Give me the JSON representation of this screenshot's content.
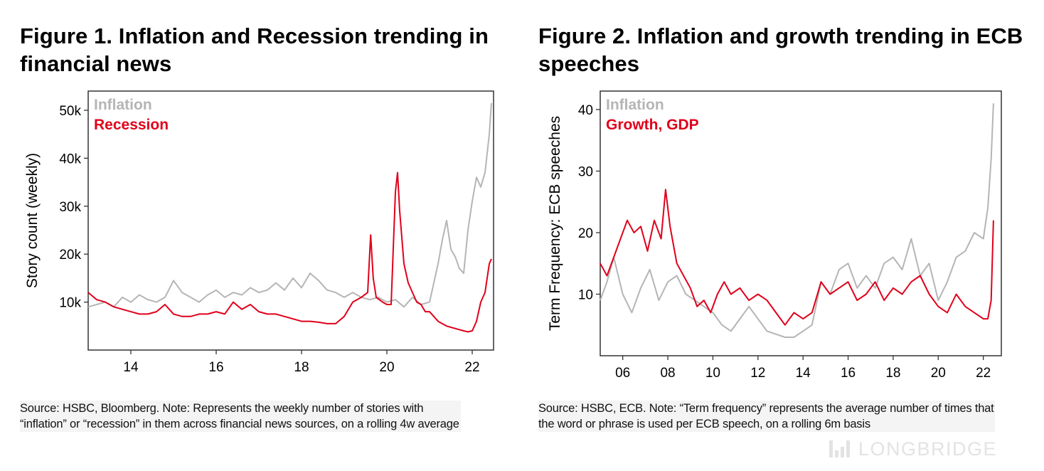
{
  "figure1": {
    "title": "Figure 1. Inflation and Recession trending in financial news",
    "source": "Source: HSBC, Bloomberg. Note: Represents the weekly number of stories with “inflation” or “recession” in them across financial news sources, on a rolling 4w average"
  },
  "figure2": {
    "title": "Figure 2. Inflation and growth trending in ECB speeches",
    "source": "Source: HSBC, ECB. Note: “Term frequency” represents the average number of times that the word or phrase is used per ECB speech, on a rolling 6m basis"
  },
  "watermark": {
    "text": "LONGBRIDGE",
    "icon": "longbridge-bars-icon"
  },
  "colors": {
    "inflation": "#b5b5b5",
    "recession": "#e0001b",
    "axis": "#333333"
  },
  "chart_data": [
    {
      "type": "line",
      "title": "Figure 1. Inflation and Recession trending in financial news",
      "xlabel": "",
      "ylabel": "Story count (weekly)",
      "xlim": [
        13.0,
        22.5
      ],
      "ylim": [
        0,
        54000
      ],
      "xticks": [
        14,
        16,
        18,
        20,
        22
      ],
      "xtick_labels": [
        "14",
        "16",
        "18",
        "20",
        "22"
      ],
      "yticks": [
        10000,
        20000,
        30000,
        40000,
        50000
      ],
      "ytick_labels": [
        "10k",
        "20k",
        "30k",
        "40k",
        "50k"
      ],
      "grid": false,
      "legend_position": "top-left",
      "series": [
        {
          "name": "Inflation",
          "color": "#b5b5b5",
          "x": [
            13.0,
            13.2,
            13.4,
            13.6,
            13.8,
            14.0,
            14.2,
            14.4,
            14.6,
            14.8,
            15.0,
            15.2,
            15.4,
            15.6,
            15.8,
            16.0,
            16.2,
            16.4,
            16.6,
            16.8,
            17.0,
            17.2,
            17.4,
            17.6,
            17.8,
            18.0,
            18.2,
            18.4,
            18.6,
            18.8,
            19.0,
            19.2,
            19.4,
            19.6,
            19.8,
            20.0,
            20.2,
            20.4,
            20.6,
            20.8,
            21.0,
            21.1,
            21.2,
            21.3,
            21.4,
            21.5,
            21.6,
            21.7,
            21.8,
            21.9,
            22.0,
            22.1,
            22.2,
            22.3,
            22.4,
            22.45
          ],
          "y": [
            9000,
            9500,
            10000,
            9000,
            11000,
            10000,
            11500,
            10500,
            10000,
            11000,
            14500,
            12000,
            11000,
            10000,
            11500,
            12500,
            11000,
            12000,
            11500,
            13000,
            12000,
            12500,
            14000,
            12500,
            15000,
            13000,
            16000,
            14500,
            12500,
            12000,
            11000,
            12000,
            11000,
            10500,
            11000,
            10000,
            10500,
            9000,
            11000,
            9500,
            10000,
            14000,
            18000,
            23000,
            27000,
            21000,
            19500,
            17000,
            16000,
            25000,
            31000,
            36000,
            34000,
            37000,
            45000,
            51500
          ]
        },
        {
          "name": "Recession",
          "color": "#e0001b",
          "x": [
            13.0,
            13.2,
            13.4,
            13.6,
            13.8,
            14.0,
            14.2,
            14.4,
            14.6,
            14.8,
            15.0,
            15.2,
            15.4,
            15.6,
            15.8,
            16.0,
            16.2,
            16.4,
            16.6,
            16.8,
            17.0,
            17.2,
            17.4,
            17.6,
            17.8,
            18.0,
            18.2,
            18.4,
            18.6,
            18.8,
            19.0,
            19.2,
            19.4,
            19.55,
            19.62,
            19.68,
            19.75,
            19.9,
            20.0,
            20.1,
            20.2,
            20.25,
            20.3,
            20.4,
            20.5,
            20.6,
            20.7,
            20.8,
            20.9,
            21.0,
            21.2,
            21.4,
            21.6,
            21.8,
            21.9,
            22.0,
            22.1,
            22.2,
            22.3,
            22.4,
            22.45
          ],
          "y": [
            12000,
            10500,
            10000,
            9000,
            8500,
            8000,
            7500,
            7500,
            8000,
            9500,
            7500,
            7000,
            7000,
            7500,
            7500,
            8000,
            7500,
            10000,
            8500,
            9500,
            8000,
            7500,
            7500,
            7000,
            6500,
            6000,
            6000,
            5800,
            5500,
            5500,
            7000,
            10000,
            11000,
            12000,
            24000,
            15000,
            11000,
            10000,
            9500,
            9500,
            33000,
            37000,
            29000,
            18000,
            14000,
            12000,
            10000,
            9500,
            8000,
            8000,
            6000,
            5000,
            4500,
            4000,
            3800,
            4000,
            6000,
            10000,
            12000,
            18000,
            19000
          ]
        }
      ]
    },
    {
      "type": "line",
      "title": "Figure 2. Inflation and growth trending in ECB speeches",
      "xlabel": "",
      "ylabel": "Term Frequency: ECB speeches",
      "xlim": [
        5.0,
        22.8
      ],
      "ylim": [
        0,
        43
      ],
      "xticks": [
        6,
        8,
        10,
        12,
        14,
        16,
        18,
        20,
        22
      ],
      "xtick_labels": [
        "06",
        "08",
        "10",
        "12",
        "14",
        "16",
        "18",
        "20",
        "22"
      ],
      "yticks": [
        10,
        20,
        30,
        40
      ],
      "ytick_labels": [
        "10",
        "20",
        "30",
        "40"
      ],
      "grid": false,
      "legend_position": "top-left",
      "series": [
        {
          "name": "Inflation",
          "color": "#b5b5b5",
          "x": [
            5.0,
            5.3,
            5.6,
            6.0,
            6.4,
            6.8,
            7.2,
            7.6,
            8.0,
            8.4,
            8.8,
            9.2,
            9.6,
            10.0,
            10.4,
            10.8,
            11.2,
            11.6,
            12.0,
            12.4,
            12.8,
            13.2,
            13.6,
            14.0,
            14.4,
            14.8,
            15.2,
            15.6,
            16.0,
            16.4,
            16.8,
            17.2,
            17.6,
            18.0,
            18.4,
            18.8,
            19.2,
            19.6,
            20.0,
            20.4,
            20.8,
            21.2,
            21.6,
            22.0,
            22.2,
            22.35,
            22.45
          ],
          "y": [
            9,
            12,
            16,
            10,
            7,
            11,
            14,
            9,
            12,
            13,
            10,
            9,
            8,
            7,
            5,
            4,
            6,
            8,
            6,
            4,
            3.5,
            3,
            3,
            4,
            5,
            12,
            10,
            14,
            15,
            11,
            13,
            11,
            15,
            16,
            14,
            19,
            13,
            15,
            9,
            12,
            16,
            17,
            20,
            19,
            24,
            32,
            41
          ]
        },
        {
          "name": "Growth, GDP",
          "color": "#e0001b",
          "x": [
            5.0,
            5.3,
            5.6,
            5.9,
            6.2,
            6.5,
            6.8,
            7.1,
            7.4,
            7.7,
            7.9,
            8.1,
            8.4,
            8.7,
            9.0,
            9.3,
            9.6,
            9.9,
            10.2,
            10.5,
            10.8,
            11.2,
            11.6,
            12.0,
            12.4,
            12.8,
            13.2,
            13.6,
            14.0,
            14.4,
            14.8,
            15.2,
            15.6,
            16.0,
            16.4,
            16.8,
            17.2,
            17.6,
            18.0,
            18.4,
            18.8,
            19.2,
            19.6,
            20.0,
            20.4,
            20.8,
            21.2,
            21.6,
            22.0,
            22.2,
            22.35,
            22.45
          ],
          "y": [
            15,
            13,
            16,
            19,
            22,
            20,
            21,
            17,
            22,
            19,
            27,
            21,
            15,
            13,
            11,
            8,
            9,
            7,
            10,
            12,
            10,
            11,
            9,
            10,
            9,
            7,
            5,
            7,
            6,
            7,
            12,
            10,
            11,
            12,
            9,
            10,
            12,
            9,
            11,
            10,
            12,
            13,
            10,
            8,
            7,
            10,
            8,
            7,
            6,
            6,
            9,
            22
          ]
        }
      ]
    }
  ]
}
